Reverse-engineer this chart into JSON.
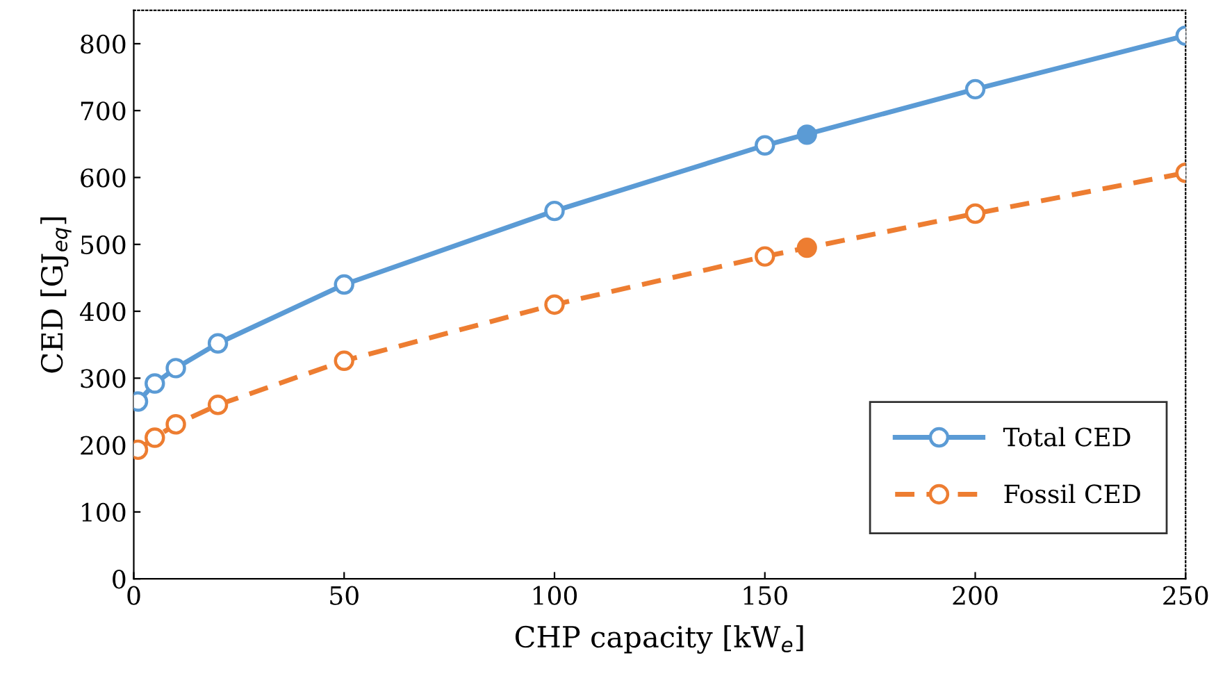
{
  "chart_data": {
    "type": "line",
    "xlabel": "CHP capacity [kW$_{e}$]",
    "ylabel": "CED [GJ$_{eq}$]",
    "x": [
      1,
      5,
      10,
      20,
      50,
      100,
      150,
      200,
      250
    ],
    "series": [
      {
        "name": "Total CED",
        "color": "#5b9bd5",
        "line_style": "solid",
        "values": [
          265,
          292,
          315,
          352,
          440,
          550,
          648,
          732,
          812
        ]
      },
      {
        "name": "Fossil CED",
        "color": "#ed7d31",
        "line_style": "dashed",
        "values": [
          193,
          211,
          231,
          260,
          326,
          410,
          482,
          546,
          607
        ]
      },
      {
        "type": "scatter",
        "x": [
          160
        ],
        "color": "#5b9bd5",
        "values": [
          664
        ]
      },
      {
        "type": "scatter",
        "x": [
          160
        ],
        "color": "#ed7d31",
        "values": [
          495
        ]
      }
    ],
    "marker": "circle",
    "xlim": [
      0,
      250
    ],
    "xticks": [
      0,
      50,
      100,
      150,
      200,
      250
    ],
    "ylim": [
      0,
      850
    ],
    "yticks": [
      0,
      100,
      200,
      300,
      400,
      500,
      600,
      700,
      800
    ],
    "grid": false,
    "legend": "bottom right"
  }
}
